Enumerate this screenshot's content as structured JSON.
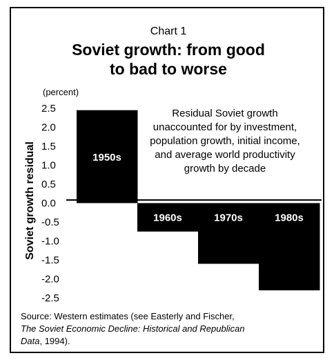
{
  "chart_data": {
    "type": "bar",
    "chart_number": "Chart 1",
    "title": [
      "Soviet growth: from good",
      "to bad to worse"
    ],
    "unit_label": "(percent)",
    "ylabel": "Soviet growth residual",
    "ylim": [
      -2.5,
      2.5
    ],
    "yticks": [
      "2.5",
      "2.0",
      "1.5",
      "1.0",
      "0.5",
      "0.0",
      "-0.5",
      "-1.0",
      "-1.5",
      "-2.0",
      "-2.5"
    ],
    "ytick_values": [
      2.5,
      2.0,
      1.5,
      1.0,
      0.5,
      0.0,
      -0.5,
      -1.0,
      -1.5,
      -2.0,
      -2.5
    ],
    "categories": [
      "1950s",
      "1960s",
      "1970s",
      "1980s"
    ],
    "values": [
      2.45,
      -0.75,
      -1.6,
      -2.3
    ],
    "bar_color": "#000000",
    "annotation": [
      "Residual Soviet growth",
      "unaccounted for by investment,",
      "population growth, initial income,",
      "and average world productivity",
      "growth by decade"
    ],
    "source": {
      "prefix": "Source: Western estimates (see Easterly and Fischer,",
      "italic": "The Soviet Economic Decline: Historical and Republican",
      "italic_end": "Data",
      "suffix": ", 1994)."
    }
  }
}
